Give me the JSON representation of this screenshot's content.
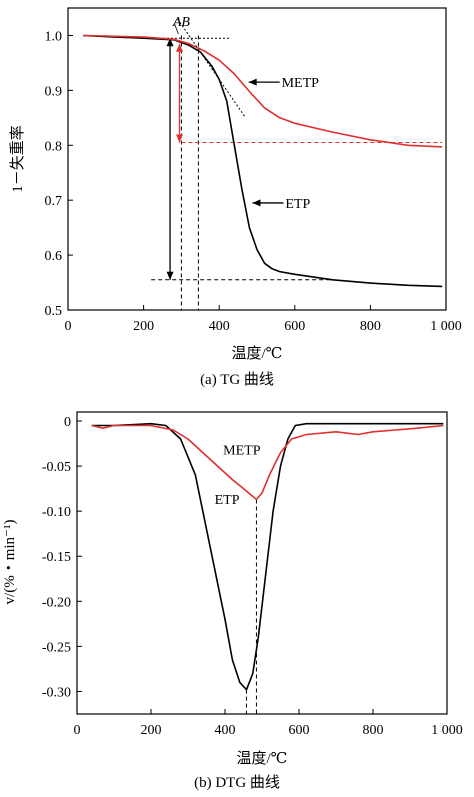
{
  "chart_data": [
    {
      "type": "line",
      "caption": "(a) TG 曲线",
      "xlabel": "温度/℃",
      "ylabel": "1－失重率",
      "xlim": [
        0,
        1000
      ],
      "ylim": [
        0.5,
        1.05
      ],
      "x_ticks": [
        "0",
        "200",
        "400",
        "600",
        "800",
        "1 000"
      ],
      "y_ticks": [
        "0.5",
        "0.6",
        "0.7",
        "0.8",
        "0.9",
        "1.0"
      ],
      "series": [
        {
          "name": "ETP",
          "color": "#000000",
          "x": [
            40,
            100,
            200,
            280,
            320,
            350,
            380,
            400,
            420,
            440,
            460,
            480,
            500,
            520,
            540,
            560,
            600,
            700,
            800,
            900,
            990
          ],
          "y": [
            1.0,
            0.998,
            0.995,
            0.992,
            0.982,
            0.97,
            0.945,
            0.92,
            0.88,
            0.8,
            0.72,
            0.65,
            0.61,
            0.585,
            0.575,
            0.57,
            0.565,
            0.555,
            0.549,
            0.545,
            0.543
          ]
        },
        {
          "name": "METP",
          "color": "#e03030",
          "x": [
            40,
            100,
            200,
            280,
            320,
            360,
            400,
            440,
            480,
            520,
            560,
            600,
            700,
            800,
            900,
            990
          ],
          "y": [
            1.0,
            0.999,
            0.997,
            0.993,
            0.985,
            0.972,
            0.955,
            0.93,
            0.898,
            0.868,
            0.85,
            0.84,
            0.824,
            0.81,
            0.8,
            0.797
          ]
        }
      ],
      "annotations": {
        "ab_label": "AB",
        "etp_label": "ETP",
        "metp_label": "METP",
        "A_x": 300,
        "B_x": 345,
        "etp_residue": 0.555,
        "metp_residue": 0.805,
        "onset_level": 0.995
      }
    },
    {
      "type": "line",
      "caption": "(b) DTG 曲线",
      "xlabel": "温度/℃",
      "ylabel": "v/(%・min⁻¹)",
      "xlim": [
        0,
        1000
      ],
      "ylim": [
        -0.325,
        0.01
      ],
      "x_ticks": [
        "0",
        "200",
        "400",
        "600",
        "800",
        "1 000"
      ],
      "y_ticks": [
        "0",
        "-0.05",
        "-0.10",
        "-0.15",
        "-0.20",
        "-0.25",
        "-0.30"
      ],
      "series": [
        {
          "name": "ETP",
          "color": "#000000",
          "x": [
            40,
            100,
            200,
            240,
            280,
            320,
            360,
            400,
            420,
            440,
            458,
            475,
            490,
            510,
            530,
            550,
            570,
            590,
            620,
            700,
            800,
            900,
            990
          ],
          "y": [
            -0.005,
            -0.005,
            -0.003,
            -0.005,
            -0.02,
            -0.06,
            -0.14,
            -0.22,
            -0.265,
            -0.29,
            -0.298,
            -0.28,
            -0.24,
            -0.17,
            -0.1,
            -0.05,
            -0.02,
            -0.005,
            -0.003,
            -0.003,
            -0.003,
            -0.003,
            -0.003
          ]
        },
        {
          "name": "METP",
          "color": "#e03030",
          "x": [
            40,
            70,
            100,
            200,
            260,
            300,
            340,
            380,
            420,
            450,
            470,
            485,
            500,
            520,
            550,
            580,
            620,
            700,
            760,
            800,
            860,
            920,
            990
          ],
          "y": [
            -0.005,
            -0.008,
            -0.005,
            -0.005,
            -0.01,
            -0.02,
            -0.035,
            -0.05,
            -0.065,
            -0.075,
            -0.082,
            -0.087,
            -0.08,
            -0.06,
            -0.035,
            -0.02,
            -0.015,
            -0.012,
            -0.015,
            -0.012,
            -0.01,
            -0.008,
            -0.005
          ]
        }
      ],
      "annotations": {
        "etp_label": "ETP",
        "metp_label": "METP",
        "etp_peak_x": 458,
        "metp_peak_x": 485
      }
    }
  ]
}
